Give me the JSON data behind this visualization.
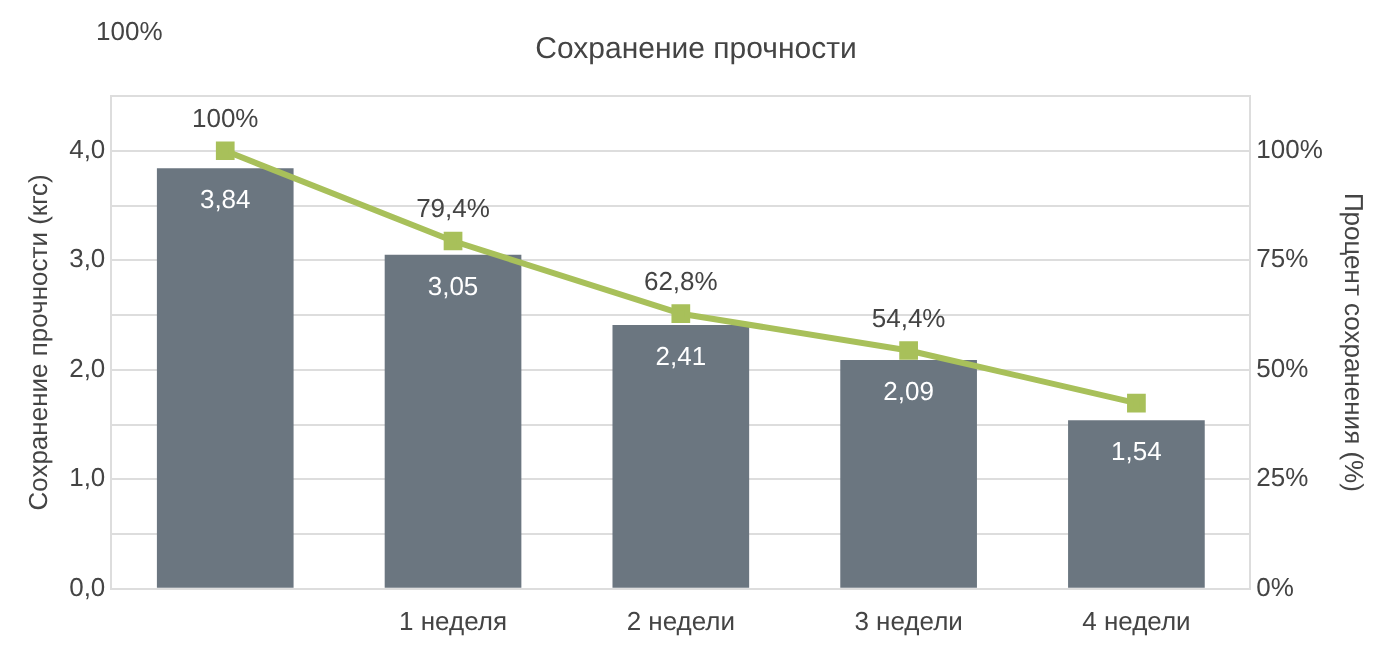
{
  "chart_data": {
    "type": "bar",
    "title": "Сохранение прочности",
    "ylabel": "Сохранение прочности (кгс)",
    "y2label": "Процент сохранения (%)",
    "annotations": [
      "100%"
    ],
    "categories": [
      null,
      "1 неделя",
      "2 недели",
      "3 недели",
      "4 недели"
    ],
    "series": [
      {
        "color": "#6b7680",
        "values": [
          3.84,
          3.05,
          2.41,
          2.09,
          1.54
        ],
        "value_labels": [
          "3,84",
          "3,05",
          "2,41",
          "2,09",
          "1,54"
        ]
      },
      {
        "type": "line",
        "axis": "y2",
        "color": "#a8c05a",
        "marker": "square",
        "values": [
          100,
          79.4,
          62.8,
          54.4,
          42.4
        ],
        "value_labels": [
          "100%",
          "79,4%",
          "62,8%",
          "54,4%",
          null
        ]
      }
    ],
    "ylim": [
      0,
      4.5
    ],
    "yticks": [
      {
        "value": 0,
        "label": "0,0"
      },
      {
        "value": 0.5,
        "label": null
      },
      {
        "value": 1,
        "label": "1,0"
      },
      {
        "value": 1.5,
        "label": null
      },
      {
        "value": 2,
        "label": "2,0"
      },
      {
        "value": 2.5,
        "label": null
      },
      {
        "value": 3,
        "label": "3,0"
      },
      {
        "value": 3.5,
        "label": null
      },
      {
        "value": 4,
        "label": "4,0"
      },
      {
        "value": 4.5,
        "label": null
      }
    ],
    "y2lim": [
      0,
      112.5
    ],
    "y2ticks": [
      {
        "value": 0,
        "label": "0%"
      },
      {
        "value": 25,
        "label": "25%"
      },
      {
        "value": 50,
        "label": "50%"
      },
      {
        "value": 75,
        "label": "75%"
      },
      {
        "value": 100,
        "label": "100%"
      }
    ],
    "grid": "y",
    "legend": false
  }
}
